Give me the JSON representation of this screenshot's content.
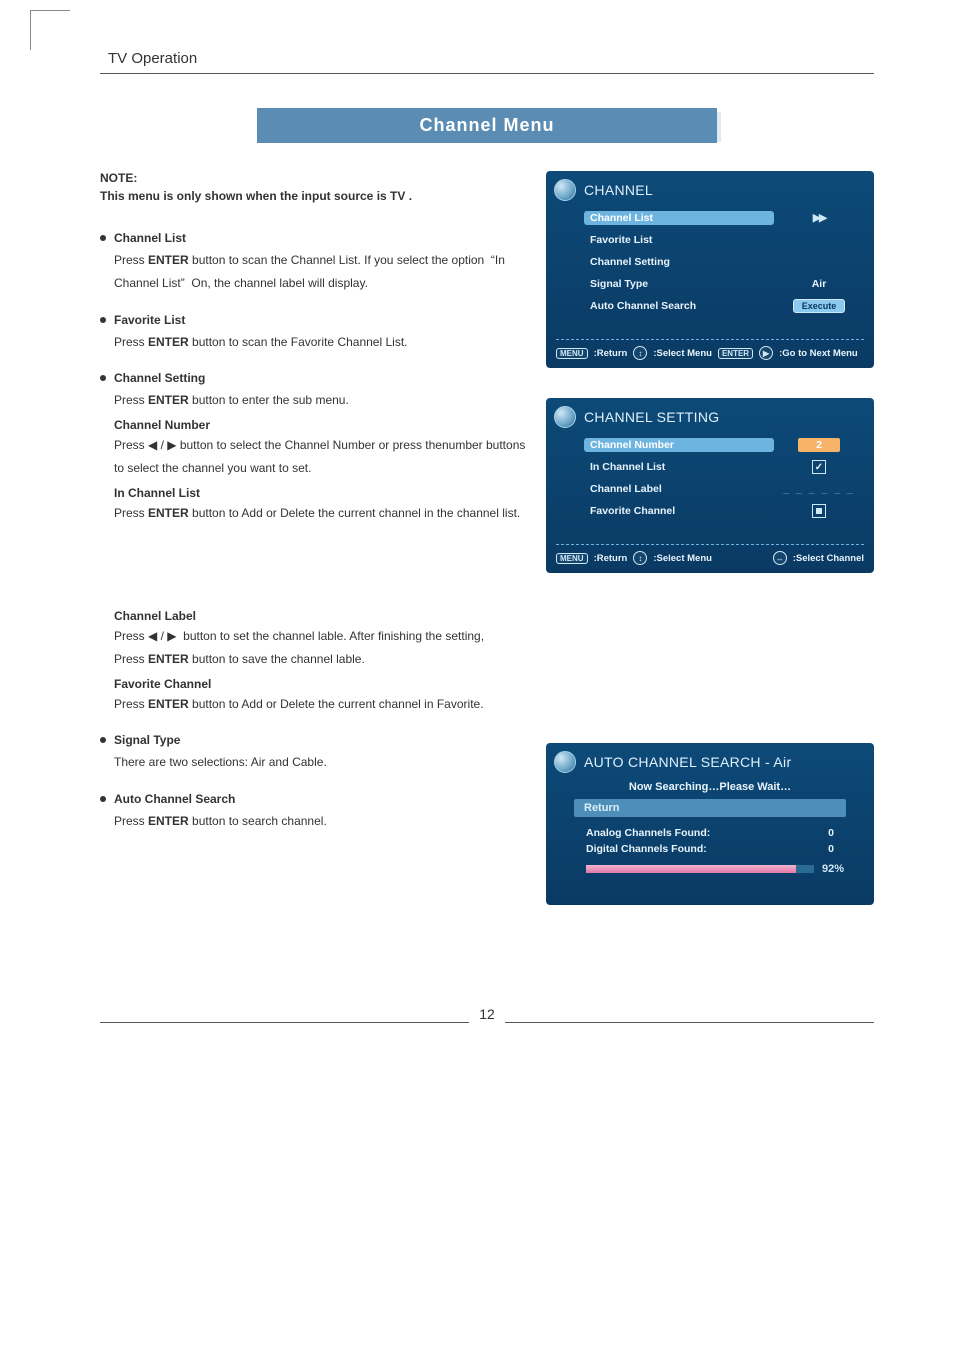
{
  "header": {
    "section_title": "TV   Operation",
    "banner": "Channel Menu"
  },
  "note": {
    "label": "NOTE:",
    "text": "This menu is only shown when the input source is TV ."
  },
  "items": {
    "channel_list": {
      "title": "Channel List",
      "body": "Press ENTER button to scan the Channel List. If you select the option  “In Channel List”  On, the channel label will display."
    },
    "favorite_list": {
      "title": "Favorite List",
      "body": "Press ENTER button to scan the Favorite Channel List."
    },
    "channel_setting": {
      "title": "Channel Setting",
      "body": "Press ENTER button to enter the sub menu.",
      "sub": {
        "channel_number": {
          "h": "Channel Number",
          "t": "Press ◀ / ▶ button to select the Channel Number or press thenumber buttons to select the channel you want to set."
        },
        "in_channel_list": {
          "h": "In Channel List",
          "t": "Press ENTER button to Add or Delete the current channel in the channel list."
        },
        "channel_label": {
          "h": "Channel Label",
          "t1": "Press ◀ / ▶  button to set the channel lable. After finishing the setting,",
          "t2": "Press ENTER button to save the channel lable."
        },
        "favorite_channel": {
          "h": "Favorite Channel",
          "t": "Press ENTER button to Add or Delete the current channel in Favorite."
        }
      }
    },
    "signal_type": {
      "title": "Signal Type",
      "body": "There are two selections: Air and Cable."
    },
    "auto_search": {
      "title": "Auto Channel Search",
      "body": "Press ENTER button to search channel."
    }
  },
  "osd_channel": {
    "title": "CHANNEL",
    "rows": {
      "r1": "Channel List",
      "r2": "Favorite List",
      "r3": "Channel Setting",
      "r4": "Signal Type",
      "r4v": "Air",
      "r5": "Auto Channel Search",
      "r5v": "Execute"
    },
    "footer": {
      "k1": "MENU",
      "t1": ":Return",
      "t2": ":Select Menu",
      "k2": "ENTER",
      "t3": ":Go to Next Menu"
    },
    "arrows": "▶▶",
    "colors": {
      "bg": "#0d4a78",
      "sel": "#6db4e0",
      "footer": "#e8f3fb"
    }
  },
  "osd_setting": {
    "title": "CHANNEL SETTING",
    "rows": {
      "r1": "Channel Number",
      "r1v": "2",
      "r2": "In Channel List",
      "r3": "Channel Label",
      "r3v": "_ _ _ _ _ _",
      "r4": "Favorite Channel"
    },
    "footer": {
      "k1": "MENU",
      "t1": ":Return",
      "t2": ":Select Menu",
      "t3": ":Select Channel"
    }
  },
  "osd_search": {
    "title": "AUTO CHANNEL SEARCH - Air",
    "sub": "Now Searching…Please Wait…",
    "return": "Return",
    "analog_label": "Analog Channels Found:",
    "analog_val": "0",
    "digital_label": "Digital Channels Found:",
    "digital_val": "0",
    "pct": "92%",
    "pct_width": 92
  },
  "page_number": "12"
}
